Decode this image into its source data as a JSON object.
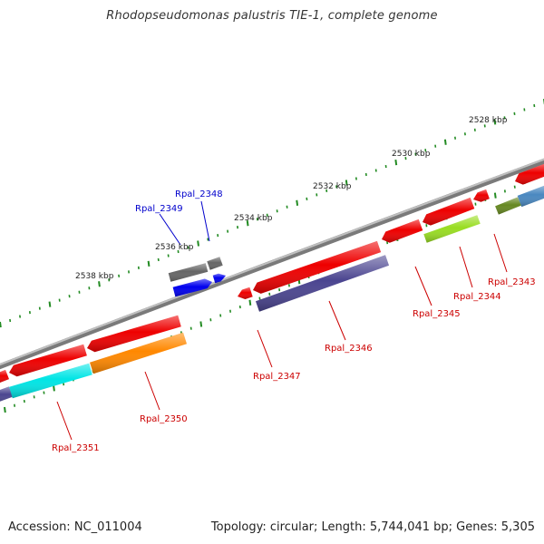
{
  "title": "Rhodopseudomonas palustris TIE-1, complete genome",
  "footer": {
    "accession": "Accession: NC_011004",
    "topology": "Topology: circular; Length: 5,744,041 bp; Genes: 5,305"
  },
  "scale_labels": [
    "2528 kbp",
    "2530 kbp",
    "2532 kbp",
    "2534 kbp",
    "2536 kbp",
    "2538 kbp"
  ],
  "gene_labels_red": [
    "Rpal_2343",
    "Rpal_2344",
    "Rpal_2345",
    "Rpal_2346",
    "Rpal_2347",
    "Rpal_2350",
    "Rpal_2351"
  ],
  "gene_labels_blue": [
    "Rpal_2348",
    "Rpal_2349"
  ],
  "colors": {
    "backbone": "#8a8a8a",
    "red": "#ee0000",
    "navy": "#4b4590",
    "cyan": "#00e5e5",
    "orange": "#ff8800",
    "lime": "#99dd22",
    "olive": "#668822",
    "steel": "#4a88c0",
    "gray": "#666666",
    "blue": "#0000ee",
    "tick": "#228b22",
    "label_red": "#cc0000",
    "label_blue": "#0000cc"
  }
}
